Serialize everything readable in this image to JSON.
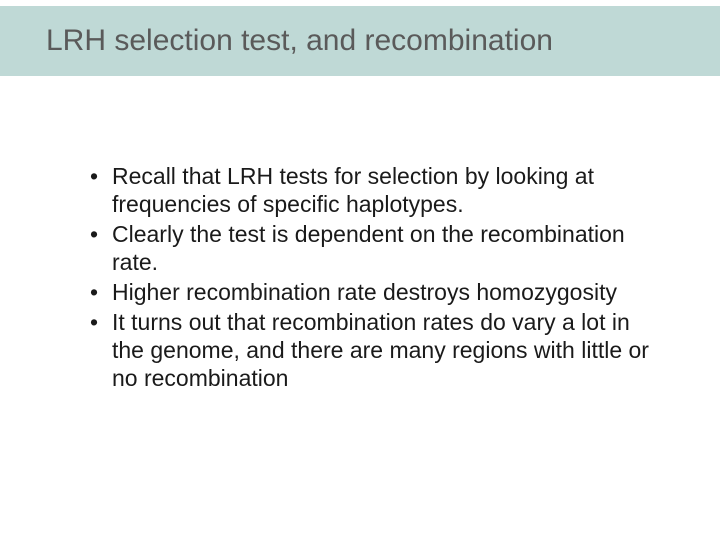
{
  "slide": {
    "title": "LRH selection test, and recombination",
    "bullets": [
      "Recall that LRH tests for selection by looking at frequencies of specific haplotypes.",
      "Clearly the test is dependent on the recombination rate.",
      "Higher recombination rate destroys homozygosity",
      "It turns out that recombination rates do vary a lot in the genome, and there are many regions with little or no recombination"
    ]
  },
  "style": {
    "background_color": "#ffffff",
    "header_band_color": "#bfd9d6",
    "title_color": "#5a5a5a",
    "title_fontsize": 30,
    "body_color": "#1a1a1a",
    "body_fontsize": 23,
    "font_family": "Arial, Helvetica, sans-serif",
    "slide_width": 720,
    "slide_height": 540
  }
}
